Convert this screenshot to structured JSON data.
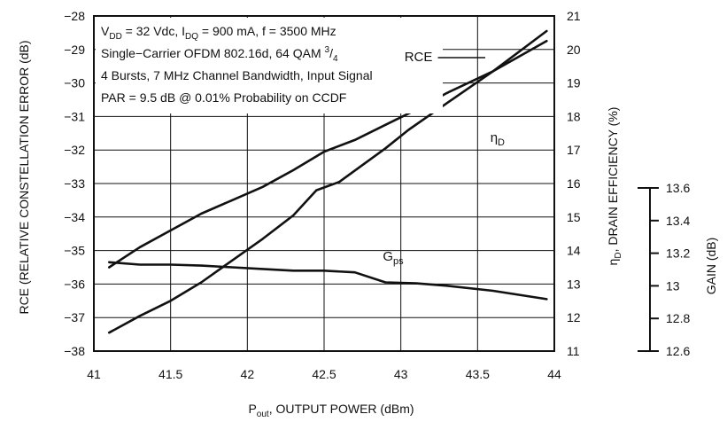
{
  "chart_data": {
    "type": "line",
    "xlabel_main": "P",
    "xlabel_sub": "out",
    "xlabel_rest": ", OUTPUT POWER (dBm)",
    "ylabel_left": "RCE (RELATIVE CONSTELLATION ERROR (dB)",
    "ylabel_right_main": "η",
    "ylabel_right_sub": "D",
    "ylabel_right_rest": ", DRAIN EFFICIENCY (%)",
    "ylabel_gain": "GAIN (dB)",
    "xlim": [
      41,
      44
    ],
    "ylim_left": [
      -38,
      -28
    ],
    "ylim_right": [
      11,
      21
    ],
    "ylim_gain": [
      12.6,
      13.6
    ],
    "x_ticks": [
      "41",
      "41.5",
      "42",
      "42.5",
      "43",
      "43.5",
      "44"
    ],
    "y_left_ticks": [
      "-28",
      "-29",
      "-30",
      "-31",
      "-32",
      "-33",
      "-34",
      "-35",
      "-36",
      "-37",
      "-38"
    ],
    "y_right_ticks": [
      "21",
      "20",
      "19",
      "18",
      "17",
      "16",
      "15",
      "14",
      "13",
      "12",
      "11"
    ],
    "y_gain_ticks": [
      "13.6",
      "13.4",
      "13.2",
      "13",
      "12.8",
      "12.6"
    ],
    "grid": true,
    "annotation_lines": [
      {
        "parts": [
          [
            "V",
            ""
          ],
          [
            "DD",
            "sub"
          ],
          [
            " = 32 Vdc, I",
            ""
          ],
          [
            "DQ",
            "sub"
          ],
          [
            " = 900 mA, f = 3500 MHz",
            ""
          ]
        ]
      },
      {
        "parts": [
          [
            "Single−Carrier OFDM 802.16d, 64 QAM ",
            ""
          ],
          [
            "3",
            "sup"
          ],
          [
            "/",
            ""
          ],
          [
            "4",
            "sub"
          ]
        ]
      },
      {
        "parts": [
          [
            "4 Bursts, 7 MHz Channel Bandwidth, Input Signal",
            ""
          ]
        ]
      },
      {
        "parts": [
          [
            "PAR = 9.5 dB @ 0.01% Probability on CCDF",
            ""
          ]
        ]
      }
    ],
    "series": [
      {
        "name": "RCE",
        "axis": "left",
        "x": [
          41.1,
          41.3,
          41.5,
          41.7,
          41.9,
          42.1,
          42.3,
          42.45,
          42.6,
          42.75,
          42.9,
          43.05,
          43.3,
          43.6,
          43.95
        ],
        "y": [
          -37.45,
          -36.95,
          -36.5,
          -35.95,
          -35.3,
          -34.65,
          -33.95,
          -33.2,
          -32.95,
          -32.45,
          -31.95,
          -31.4,
          -30.6,
          -29.65,
          -28.45
        ]
      },
      {
        "name_main": "η",
        "name_sub": "D",
        "axis": "right",
        "x": [
          41.1,
          41.3,
          41.5,
          41.7,
          41.9,
          42.1,
          42.3,
          42.5,
          42.7,
          42.9,
          43.1,
          43.3,
          43.6,
          43.95
        ],
        "y": [
          13.5,
          14.1,
          14.6,
          15.1,
          15.5,
          15.9,
          16.4,
          16.95,
          17.3,
          17.75,
          18.2,
          18.7,
          19.35,
          20.25
        ]
      },
      {
        "name_main": "G",
        "name_sub": "ps",
        "axis": "left",
        "x": [
          41.1,
          41.3,
          41.5,
          41.7,
          41.9,
          42.1,
          42.3,
          42.5,
          42.7,
          42.9,
          43.1,
          43.3,
          43.6,
          43.95
        ],
        "y": [
          -35.35,
          -35.42,
          -35.42,
          -35.45,
          -35.5,
          -35.55,
          -35.6,
          -35.6,
          -35.65,
          -35.95,
          -35.98,
          -36.05,
          -36.2,
          -36.45
        ]
      }
    ]
  }
}
